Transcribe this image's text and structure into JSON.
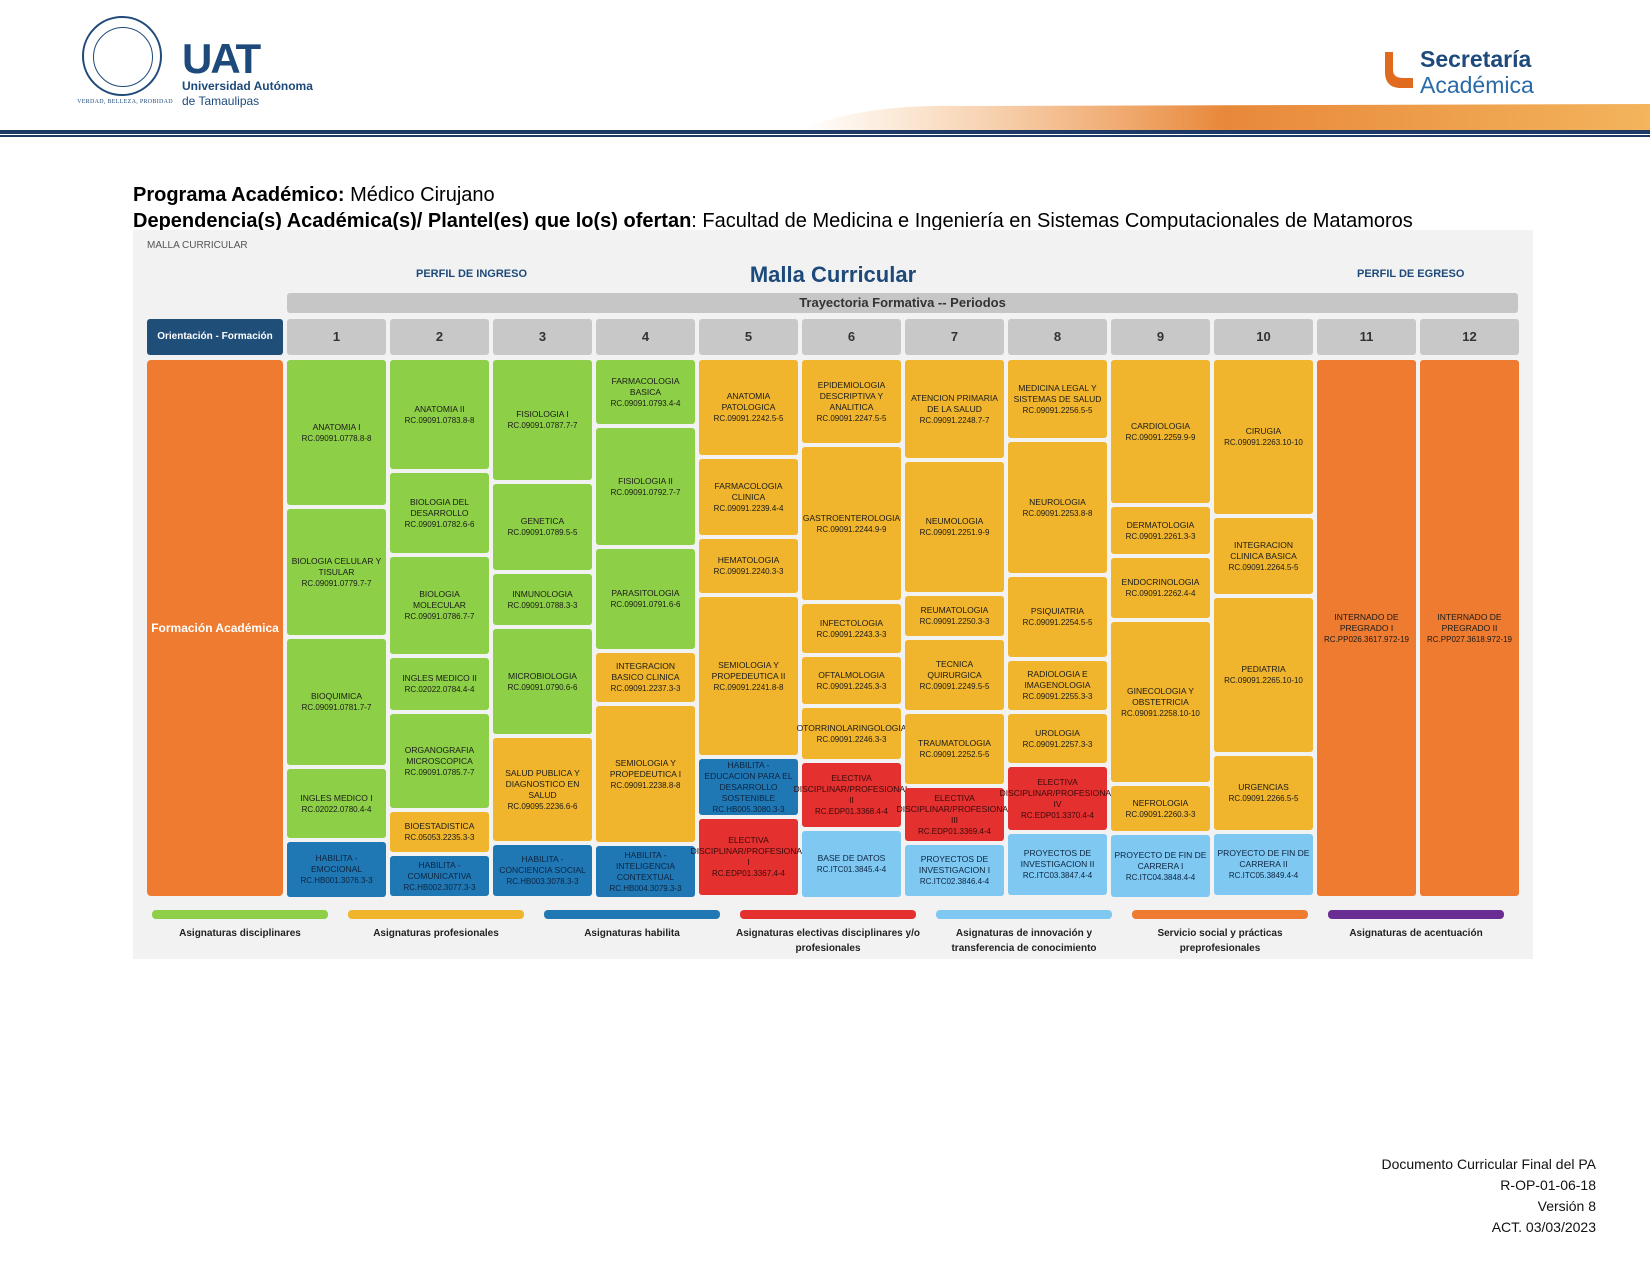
{
  "header": {
    "seal_motto": "VERDAD, BELLEZA, PROBIDAD",
    "uat_logo": "UAT",
    "uat_name_line1": "Universidad Autónoma",
    "uat_name_line2": "de Tamaulipas",
    "secretaria_line1": "Secretaría",
    "secretaria_line2": "Académica"
  },
  "program": {
    "programa_label": "Programa Académico:",
    "programa_value": "Médico Cirujano",
    "dependencia_label": "Dependencia(s) Académica(s)/ Plantel(es) que lo(s) ofertan",
    "dependencia_value": ": Facultad de Medicina e Ingeniería en Sistemas Computacionales de Matamoros"
  },
  "malla": {
    "panel_title": "MALLA CURRICULAR",
    "perfil_ingreso": "PERFIL DE INGRESO",
    "title": "Malla Curricular",
    "perfil_egreso": "PERFIL DE EGRESO",
    "trayectoria": "Trayectoria Formativa -- Periodos",
    "orientacion": "Orientación - Formación",
    "formacion": "Formación Académica",
    "periods": [
      "1",
      "2",
      "3",
      "4",
      "5",
      "6",
      "7",
      "8",
      "9",
      "10",
      "11",
      "12"
    ],
    "columns": [
      [
        {
          "name": "ANATOMIA I",
          "code": "RC.09091.0778.8-8",
          "cat": "g",
          "h": 138
        },
        {
          "name": "BIOLOGIA CELULAR Y TISULAR",
          "code": "RC.09091.0779.7-7",
          "cat": "g",
          "h": 120
        },
        {
          "name": "BIOQUIMICA",
          "code": "RC.09091.0781.7-7",
          "cat": "g",
          "h": 120
        },
        {
          "name": "INGLES MEDICO I",
          "code": "RC.02022.0780.4-4",
          "cat": "g",
          "h": 66
        },
        {
          "name": "HABILITA - EMOCIONAL",
          "code": "RC.HB001.3076.3-3",
          "cat": "b",
          "h": 52
        }
      ],
      [
        {
          "name": "ANATOMIA II",
          "code": "RC.09091.0783.8-8",
          "cat": "g",
          "h": 104
        },
        {
          "name": "BIOLOGIA DEL DESARROLLO",
          "code": "RC.09091.0782.6-6",
          "cat": "g",
          "h": 76
        },
        {
          "name": "BIOLOGIA MOLECULAR",
          "code": "RC.09091.0786.7-7",
          "cat": "g",
          "h": 92
        },
        {
          "name": "INGLES MEDICO II",
          "code": "RC.02022.0784.4-4",
          "cat": "g",
          "h": 50
        },
        {
          "name": "ORGANOGRAFIA MICROSCOPICA",
          "code": "RC.09091.0785.7-7",
          "cat": "g",
          "h": 90
        },
        {
          "name": "BIOESTADISTICA",
          "code": "RC.05053.2235.3-3",
          "cat": "y",
          "h": 38
        },
        {
          "name": "HABILITA - COMUNICATIVA",
          "code": "RC.HB002.3077.3-3",
          "cat": "b",
          "h": 38
        }
      ],
      [
        {
          "name": "FISIOLOGIA I",
          "code": "RC.09091.0787.7-7",
          "cat": "g",
          "h": 114
        },
        {
          "name": "GENETICA",
          "code": "RC.09091.0789.5-5",
          "cat": "g",
          "h": 82
        },
        {
          "name": "INMUNOLOGIA",
          "code": "RC.09091.0788.3-3",
          "cat": "g",
          "h": 48
        },
        {
          "name": "MICROBIOLOGIA",
          "code": "RC.09091.0790.6-6",
          "cat": "g",
          "h": 100
        },
        {
          "name": "SALUD PUBLICA Y DIAGNOSTICO EN SALUD",
          "code": "RC.09095.2236.6-6",
          "cat": "y",
          "h": 98
        },
        {
          "name": "HABILITA - CONCIENCIA SOCIAL",
          "code": "RC.HB003.3078.3-3",
          "cat": "b",
          "h": 48
        }
      ],
      [
        {
          "name": "FARMACOLOGIA BASICA",
          "code": "RC.09091.0793.4-4",
          "cat": "g",
          "h": 60
        },
        {
          "name": "FISIOLOGIA II",
          "code": "RC.09091.0792.7-7",
          "cat": "g",
          "h": 110
        },
        {
          "name": "PARASITOLOGIA",
          "code": "RC.09091.0791.6-6",
          "cat": "g",
          "h": 94
        },
        {
          "name": "INTEGRACION BASICO CLINICA",
          "code": "RC.09091.2237.3-3",
          "cat": "y",
          "h": 46
        },
        {
          "name": "SEMIOLOGIA Y PROPEDEUTICA I",
          "code": "RC.09091.2238.8-8",
          "cat": "y",
          "h": 128
        },
        {
          "name": "HABILITA - INTELIGENCIA CONTEXTUAL",
          "code": "RC.HB004.3079.3-3",
          "cat": "b",
          "h": 48
        }
      ],
      [
        {
          "name": "ANATOMIA PATOLOGICA",
          "code": "RC.09091.2242.5-5",
          "cat": "y",
          "h": 88
        },
        {
          "name": "FARMACOLOGIA CLINICA",
          "code": "RC.09091.2239.4-4",
          "cat": "y",
          "h": 70
        },
        {
          "name": "HEMATOLOGIA",
          "code": "RC.09091.2240.3-3",
          "cat": "y",
          "h": 50
        },
        {
          "name": "SEMIOLOGIA Y PROPEDEUTICA II",
          "code": "RC.09091.2241.8-8",
          "cat": "y",
          "h": 146
        },
        {
          "name": "HABILITA - EDUCACION PARA EL DESARROLLO SOSTENIBLE",
          "code": "RC.HB005.3080.3-3",
          "cat": "b",
          "h": 52
        },
        {
          "name": "ELECTIVA DISCIPLINAR/PROFESIONAL I",
          "code": "RC.EDP01.3367.4-4",
          "cat": "r",
          "h": 70
        }
      ],
      [
        {
          "name": "EPIDEMIOLOGIA DESCRIPTIVA Y ANALITICA",
          "code": "RC.09091.2247.5-5",
          "cat": "y",
          "h": 78
        },
        {
          "name": "GASTROENTEROLOGIA",
          "code": "RC.09091.2244.9-9",
          "cat": "y",
          "h": 144
        },
        {
          "name": "INFECTOLOGIA",
          "code": "RC.09091.2243.3-3",
          "cat": "y",
          "h": 46
        },
        {
          "name": "OFTALMOLOGIA",
          "code": "RC.09091.2245.3-3",
          "cat": "y",
          "h": 44
        },
        {
          "name": "OTORRINOLARINGOLOGIA",
          "code": "RC.09091.2246.3-3",
          "cat": "y",
          "h": 48
        },
        {
          "name": "ELECTIVA DISCIPLINAR/PROFESIONAL II",
          "code": "RC.EDP01.3368.4-4",
          "cat": "r",
          "h": 60
        },
        {
          "name": "BASE DE DATOS",
          "code": "RC.ITC01.3845.4-4",
          "cat": "l",
          "h": 62
        }
      ],
      [
        {
          "name": "ATENCION PRIMARIA DE LA SALUD",
          "code": "RC.09091.2248.7-7",
          "cat": "y",
          "h": 92
        },
        {
          "name": "NEUMOLOGIA",
          "code": "RC.09091.2251.9-9",
          "cat": "y",
          "h": 122
        },
        {
          "name": "REUMATOLOGIA",
          "code": "RC.09091.2250.3-3",
          "cat": "y",
          "h": 38
        },
        {
          "name": "TECNICA QUIRURGICA",
          "code": "RC.09091.2249.5-5",
          "cat": "y",
          "h": 66
        },
        {
          "name": "TRAUMATOLOGIA",
          "code": "RC.09091.2252.5-5",
          "cat": "y",
          "h": 66
        },
        {
          "name": "ELECTIVA DISCIPLINAR/PROFESIONAL III",
          "code": "RC.EDP01.3369.4-4",
          "cat": "r",
          "h": 50
        },
        {
          "name": "PROYECTOS DE INVESTIGACION I",
          "code": "RC.ITC02.3846.4-4",
          "cat": "l",
          "h": 48
        }
      ],
      [
        {
          "name": "MEDICINA LEGAL Y SISTEMAS DE SALUD",
          "code": "RC.09091.2256.5-5",
          "cat": "y",
          "h": 74
        },
        {
          "name": "NEUROLOGIA",
          "code": "RC.09091.2253.8-8",
          "cat": "y",
          "h": 124
        },
        {
          "name": "PSIQUIATRIA",
          "code": "RC.09091.2254.5-5",
          "cat": "y",
          "h": 76
        },
        {
          "name": "RADIOLOGIA E IMAGENOLOGIA",
          "code": "RC.09091.2255.3-3",
          "cat": "y",
          "h": 46
        },
        {
          "name": "UROLOGIA",
          "code": "RC.09091.2257.3-3",
          "cat": "y",
          "h": 46
        },
        {
          "name": "ELECTIVA DISCIPLINAR/PROFESIONAL IV",
          "code": "RC.EDP01.3370.4-4",
          "cat": "r",
          "h": 60
        },
        {
          "name": "PROYECTOS DE INVESTIGACION II",
          "code": "RC.ITC03.3847.4-4",
          "cat": "l",
          "h": 58
        }
      ],
      [
        {
          "name": "CARDIOLOGIA",
          "code": "RC.09091.2259.9-9",
          "cat": "y",
          "h": 134
        },
        {
          "name": "DERMATOLOGIA",
          "code": "RC.09091.2261.3-3",
          "cat": "y",
          "h": 44
        },
        {
          "name": "ENDOCRINOLOGIA",
          "code": "RC.09091.2262.4-4",
          "cat": "y",
          "h": 56
        },
        {
          "name": "GINECOLOGIA Y OBSTETRICIA",
          "code": "RC.09091.2258.10-10",
          "cat": "y",
          "h": 150
        },
        {
          "name": "NEFROLOGIA",
          "code": "RC.09091.2260.3-3",
          "cat": "y",
          "h": 42
        },
        {
          "name": "PROYECTO DE FIN DE CARRERA I",
          "code": "RC.ITC04.3848.4-4",
          "cat": "l",
          "h": 58
        }
      ],
      [
        {
          "name": "CIRUGIA",
          "code": "RC.09091.2263.10-10",
          "cat": "y",
          "h": 146
        },
        {
          "name": "INTEGRACION CLINICA BASICA",
          "code": "RC.09091.2264.5-5",
          "cat": "y",
          "h": 72
        },
        {
          "name": "PEDIATRIA",
          "code": "RC.09091.2265.10-10",
          "cat": "y",
          "h": 146
        },
        {
          "name": "URGENCIAS",
          "code": "RC.09091.2266.5-5",
          "cat": "y",
          "h": 70
        },
        {
          "name": "PROYECTO DE FIN DE CARRERA II",
          "code": "RC.ITC05.3849.4-4",
          "cat": "l",
          "h": 58
        }
      ],
      [
        {
          "name": "INTERNADO DE PREGRADO I",
          "code": "RC.PP026.3617.972-19",
          "cat": "o",
          "h": 506
        }
      ],
      [
        {
          "name": "INTERNADO DE PREGRADO II",
          "code": "RC.PP027.3618.972-19",
          "cat": "o",
          "h": 506
        }
      ]
    ],
    "legend": [
      {
        "label": "Asignaturas disciplinares",
        "color": "#8dd047"
      },
      {
        "label": "Asignaturas profesionales",
        "color": "#f0b52c"
      },
      {
        "label": "Asignaturas habilita",
        "color": "#1f77b4"
      },
      {
        "label": "Asignaturas electivas disciplinares y/o profesionales",
        "color": "#e53030"
      },
      {
        "label": "Asignaturas de innovación y transferencia de conocimiento",
        "color": "#7ec8f2"
      },
      {
        "label": "Servicio social y prácticas preprofesionales",
        "color": "#ee7b30"
      },
      {
        "label": "Asignaturas de acentuación",
        "color": "#6a2d94"
      }
    ]
  },
  "footer": {
    "line1": "Documento Curricular Final del PA",
    "line2": "R-OP-01-06-18",
    "line3": "Versión 8",
    "line4": "ACT. 03/03/2023"
  }
}
